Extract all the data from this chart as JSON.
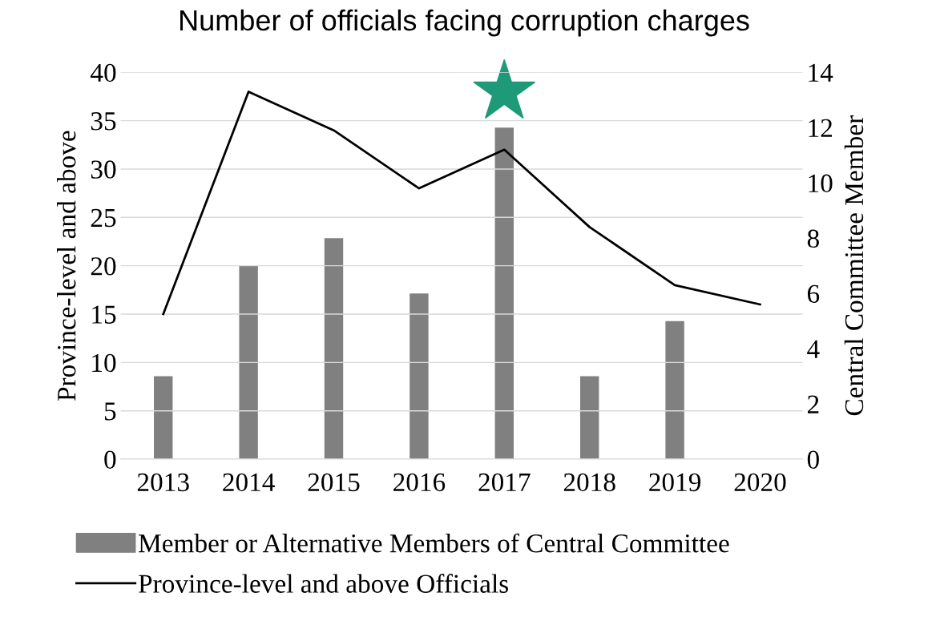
{
  "chart_data": {
    "type": "bar",
    "title": "Number of officials facing corruption charges",
    "categories": [
      "2013",
      "2014",
      "2015",
      "2016",
      "2017",
      "2018",
      "2019",
      "2020"
    ],
    "series": [
      {
        "name": "Member or Alternative Members of Central Committee",
        "axis": "y2",
        "color": "#808080",
        "values": [
          3,
          7,
          8,
          6,
          12,
          3,
          5,
          0
        ]
      },
      {
        "name": "Province-level and above Officials",
        "type": "line",
        "color": "#000000",
        "values": [
          15,
          38,
          34,
          28,
          32,
          24,
          18,
          16
        ]
      }
    ],
    "ylabel": "Province-level and above",
    "y2label": "Central Committee Member",
    "ylim": [
      0,
      40
    ],
    "yticks": [
      0,
      5,
      10,
      15,
      20,
      25,
      30,
      35,
      40
    ],
    "y2lim": [
      0,
      14
    ],
    "y2ticks": [
      0,
      2,
      4,
      6,
      8,
      10,
      12,
      14
    ],
    "grid": "y",
    "legend": "bottom"
  }
}
